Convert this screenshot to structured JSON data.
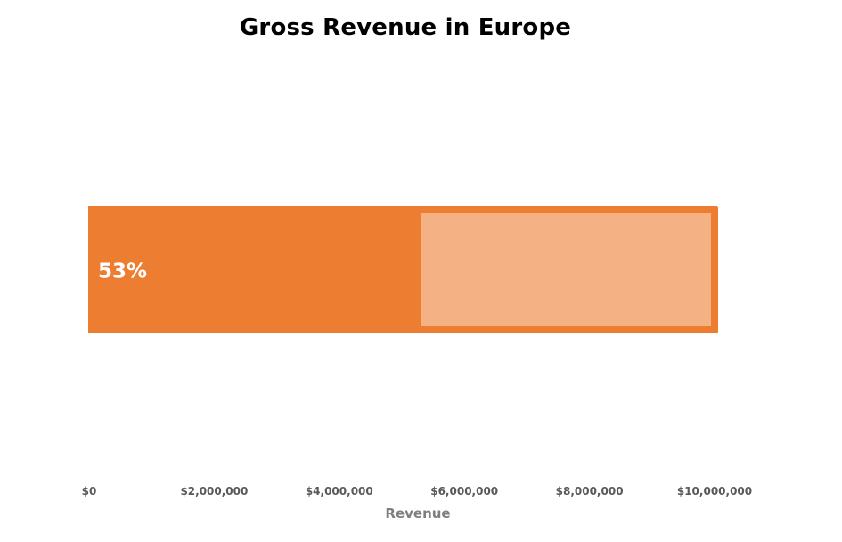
{
  "chart_data": {
    "type": "bar",
    "orientation": "horizontal",
    "title": "Gross Revenue in Europe",
    "xlabel": "Revenue",
    "ylabel": "",
    "xlim": [
      0,
      10000000
    ],
    "ticks": [
      {
        "value": 0,
        "label": "$0"
      },
      {
        "value": 2000000,
        "label": "$2,000,000"
      },
      {
        "value": 4000000,
        "label": "$4,000,000"
      },
      {
        "value": 6000000,
        "label": "$6,000,000"
      },
      {
        "value": 8000000,
        "label": "$8,000,000"
      },
      {
        "value": 10000000,
        "label": "$10,000,000"
      }
    ],
    "target": 10000000,
    "actual": 5300000,
    "percent_label": "53%",
    "grid": false,
    "legend": "none",
    "colors": {
      "actual": "#ED7D31",
      "remaining": "#F4B183",
      "outline": "#ED7D31"
    }
  }
}
